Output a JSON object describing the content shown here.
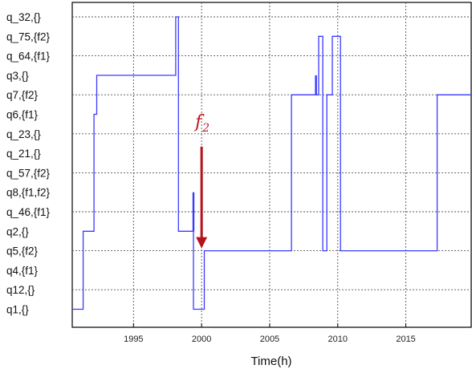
{
  "chart_data": {
    "type": "line",
    "title": "",
    "xlabel": "Time(h)",
    "ylabel": "",
    "xlim": [
      1990.5,
      2019.8
    ],
    "x_ticks": [
      1995,
      2000,
      2005,
      2010,
      2015
    ],
    "grid": true,
    "legend": "none",
    "line_color": "#3a3aff",
    "y_levels": [
      "q1,{}",
      "q12,{}",
      "q4,{f1}",
      "q5,{f2}",
      "q2,{}",
      "q_46,{f1}",
      "q8,{f1,f2}",
      "q_57,{f2}",
      "q_21,{}",
      "q_23,{}",
      "q6,{f1}",
      "q7,{f2}",
      "q3,{}",
      "q_64,{f1}",
      "q_75,{f2}",
      "q_32,{}"
    ],
    "y_labels_top_to_bottom": [
      "q_32,{}",
      "q_75,{f2}",
      "q_64,{f1}",
      "q3,{}",
      "q7,{f2}",
      "q6,{f1}",
      "q_23,{}",
      "q_21,{}",
      "q_57,{f2}",
      "q8,{f1,f2}",
      "q_46,{f1}",
      "q2,{}",
      "q5,{f2}",
      "q4,{f1}",
      "q12,{}",
      "q1,{}"
    ],
    "series": [
      {
        "x": [
          1990.5,
          1991.3,
          1991.3,
          1991.5,
          1991.5,
          1992.1,
          1992.1,
          1992.3,
          1992.3,
          1998.1,
          1998.1,
          1998.3,
          1998.3,
          1999.4,
          1999.4,
          1999.6,
          1999.6,
          2000.2,
          2000.2,
          2006.6,
          2006.6,
          2008.6,
          2008.6,
          2008.9,
          2008.9,
          2009.2,
          2009.2,
          2009.6,
          2009.6,
          2010.2,
          2010.2,
          2010.5,
          2010.5,
          2017.3,
          2017.3,
          2019.8
        ],
        "y": [
          "q1,{}",
          "q1,{}",
          "q2,{}",
          "q2,{}",
          "q2,{}",
          "q2,{}",
          "q6,{f1}",
          "q6,{f1}",
          "q3,{}",
          "q3,{}",
          "q_32,{}",
          "q_32,{}",
          "q2,{}",
          "q2,{}",
          "q1,{}",
          "q1,{}",
          "q1,{}",
          "q1,{}",
          "q5,{f2}",
          "q5,{f2}",
          "q7,{f2}",
          "q7,{f2}",
          "q_75,{f2}",
          "q_75,{f2}",
          "q5,{f2}",
          "q5,{f2}",
          "q7,{f2}",
          "q7,{f2}",
          "q_75,{f2}",
          "q_75,{f2}",
          "q5,{f2}",
          "q5,{f2}",
          "q5,{f2}",
          "q5,{f2}",
          "q7,{f2}",
          "q7,{f2}"
        ]
      },
      {
        "x": [
          1999.4,
          1999.4
        ],
        "y": [
          "q2,{}",
          "q8,{f1,f2}"
        ]
      },
      {
        "x": [
          2008.4,
          2008.4
        ],
        "y": [
          "q7,{f2}",
          "q3,{}"
        ]
      }
    ],
    "annotations": [
      {
        "text": "f",
        "subscript": "2",
        "x": 2000.0,
        "y": "q_23,{}",
        "color": "#c0161e"
      },
      {
        "type": "arrow",
        "x": 2000.0,
        "from": "q_23,{}",
        "to": "q5,{f2}",
        "color": "#b5121b"
      }
    ]
  }
}
